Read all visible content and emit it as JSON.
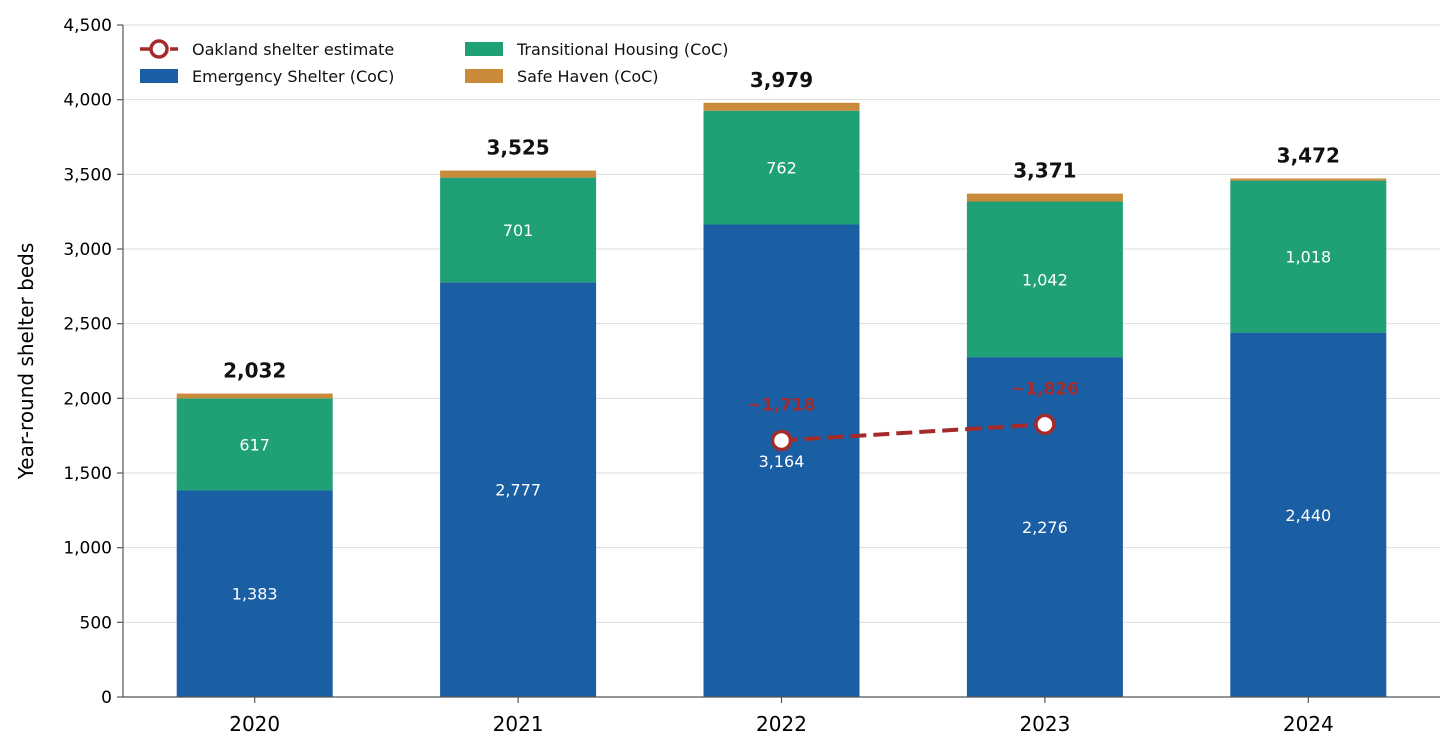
{
  "chart_data": {
    "type": "bar",
    "stacked": true,
    "categories": [
      "2020",
      "2021",
      "2022",
      "2023",
      "2024"
    ],
    "ylabel": "Year-round shelter beds",
    "ylim": [
      0,
      4500
    ],
    "yticks": [
      0,
      500,
      1000,
      1500,
      2000,
      2500,
      3000,
      3500,
      4000,
      4500
    ],
    "ytick_labels": [
      "0",
      "500",
      "1,000",
      "1,500",
      "2,000",
      "2,500",
      "3,000",
      "3,500",
      "4,000",
      "4,500"
    ],
    "grid": "horizontal",
    "legend_position": "top-left",
    "series": [
      {
        "name": "Emergency Shelter (CoC)",
        "color": "#1a5ea4",
        "values": [
          1383,
          2777,
          3164,
          2276,
          2440
        ],
        "labels": [
          "1,383",
          "2,777",
          "3,164",
          "2,276",
          "2,440"
        ]
      },
      {
        "name": "Transitional Housing (CoC)",
        "color": "#1fa076",
        "values": [
          617,
          701,
          762,
          1042,
          1018
        ],
        "labels": [
          "617",
          "701",
          "762",
          "1,042",
          "1,018"
        ]
      },
      {
        "name": "Safe Haven (CoC)",
        "color": "#c98b3a",
        "values": [
          32,
          47,
          53,
          53,
          14
        ]
      }
    ],
    "totals": [
      2032,
      3525,
      3979,
      3371,
      3472
    ],
    "total_labels": [
      "2,032",
      "3,525",
      "3,979",
      "3,371",
      "3,472"
    ],
    "overlay": {
      "name": "Oakland shelter estimate",
      "type": "line",
      "style": "dashed",
      "color": "#a52a2a",
      "points": [
        {
          "x": "2022",
          "y": 1718,
          "label": "~1,718"
        },
        {
          "x": "2023",
          "y": 1826,
          "label": "~1,826"
        }
      ]
    },
    "legend": [
      {
        "name": "Oakland shelter estimate",
        "kind": "line-marker",
        "color": "#a52a2a"
      },
      {
        "name": "Emergency Shelter (CoC)",
        "kind": "patch",
        "color": "#1a5ea4"
      },
      {
        "name": "Transitional Housing (CoC)",
        "kind": "patch",
        "color": "#1fa076"
      },
      {
        "name": "Safe Haven (CoC)",
        "kind": "patch",
        "color": "#c98b3a"
      }
    ]
  }
}
